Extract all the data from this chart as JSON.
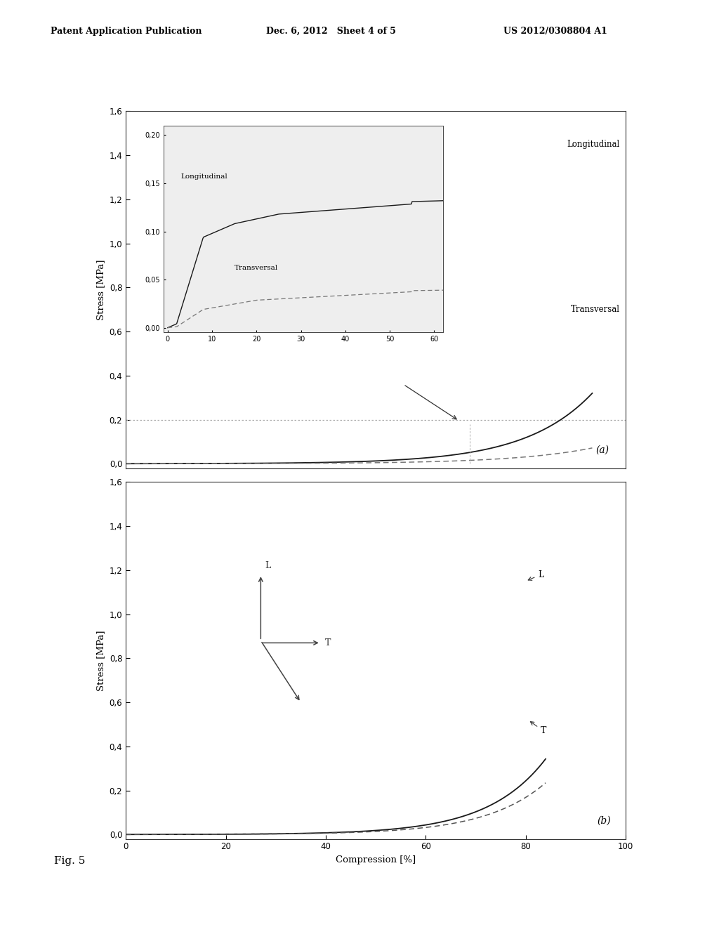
{
  "header_left": "Patent Application Publication",
  "header_mid": "Dec. 6, 2012   Sheet 4 of 5",
  "header_right": "US 2012/0308804 A1",
  "fig_label": "Fig. 5",
  "panel_a_ylabel": "Stress [MPa]",
  "panel_b_ylabel": "Stress [MPa]",
  "xlabel": "Compression [%]",
  "background_color": "#ffffff"
}
